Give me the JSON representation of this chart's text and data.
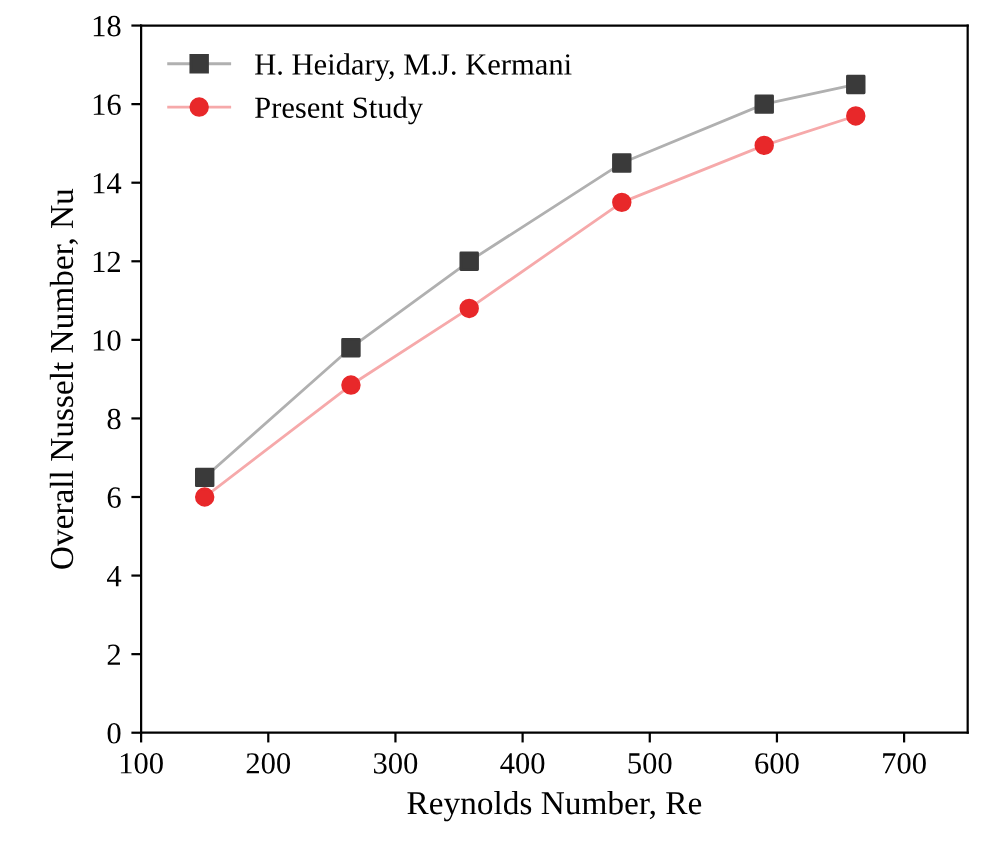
{
  "chart_data": {
    "type": "line",
    "xlabel": "Reynolds Number, Re",
    "ylabel": "Overall Nusselt Number, Nu",
    "x": [
      150,
      265,
      358,
      478,
      590,
      662
    ],
    "series": [
      {
        "name": "H. Heidary, M.J. Kermani",
        "color": "#3a3a3a",
        "marker": "square",
        "values": [
          6.5,
          9.8,
          12.0,
          14.5,
          16.0,
          16.5
        ]
      },
      {
        "name": "Present Study",
        "color": "#e8282a",
        "marker": "circle",
        "values": [
          6.0,
          8.85,
          10.8,
          13.5,
          14.95,
          15.7
        ]
      }
    ],
    "xlim": [
      100,
      750
    ],
    "xticks": [
      100,
      200,
      300,
      400,
      500,
      600,
      700
    ],
    "ylim": [
      0,
      18
    ],
    "yticks": [
      0,
      2,
      4,
      6,
      8,
      10,
      12,
      14,
      16,
      18
    ],
    "grid": false,
    "legend": "top left"
  }
}
